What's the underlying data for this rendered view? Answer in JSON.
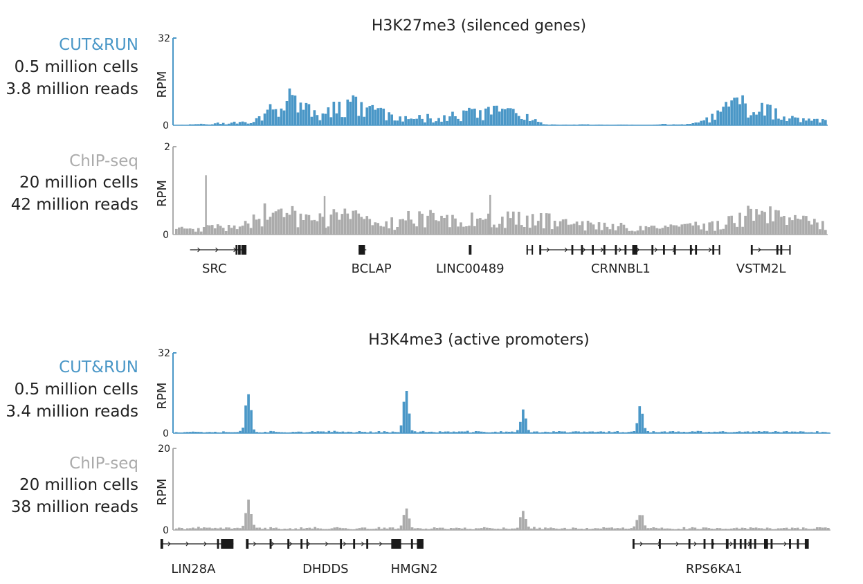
{
  "colors": {
    "cutrun": "#4A97C7",
    "chipseq": "#ABABAB",
    "text": "#222222",
    "gene": "#1a1a1a"
  },
  "chart_data": [
    {
      "type": "area",
      "title": "H3K27me3 (silenced genes)",
      "tracks": [
        {
          "method": "CUT&RUN",
          "cells": "0.5 million cells",
          "reads": "3.8 million reads",
          "ylabel": "RPM",
          "ymax_label": "32",
          "ymin_label": "0",
          "ylim": [
            0,
            32
          ],
          "color_key": "cutrun",
          "x": [
            0,
            4,
            8,
            12,
            14,
            16,
            18,
            19,
            21,
            23,
            25,
            27,
            29,
            31,
            33,
            35,
            37,
            39,
            41,
            43,
            45,
            47,
            49,
            51,
            53,
            55,
            57,
            59,
            61,
            63,
            65,
            67,
            69,
            71,
            73,
            75,
            77,
            79,
            81,
            83,
            85,
            87,
            89,
            91,
            93,
            96,
            100
          ],
          "values": [
            0,
            0.5,
            1,
            1.5,
            6.5,
            7.5,
            12.5,
            8,
            5.5,
            4,
            9,
            9,
            7.5,
            6.5,
            4,
            2.5,
            3,
            3.2,
            3.2,
            4,
            5.5,
            5.5,
            5.5,
            6.5,
            4.5,
            2,
            0.3,
            0.2,
            0.2,
            0.3,
            0.2,
            0.1,
            0.3,
            0.1,
            0.1,
            0.5,
            0.2,
            0.5,
            1.5,
            5,
            7.5,
            8.5,
            9.5,
            8,
            4.5,
            2,
            2
          ],
          "noise": 0.3,
          "seed": 11
        },
        {
          "method": "ChIP-seq",
          "cells": "20 million cells",
          "reads": "42 million reads",
          "ylabel": "RPM",
          "ymax_label": "2",
          "ymin_label": "0",
          "ylim": [
            0,
            2
          ],
          "color_key": "chipseq",
          "x": [
            0,
            4,
            8,
            10,
            12,
            13,
            14,
            16,
            18,
            20,
            22,
            24,
            26,
            28,
            30,
            32,
            34,
            36,
            38,
            40,
            42,
            44,
            46,
            48,
            50,
            52,
            54,
            56,
            58,
            60,
            62,
            64,
            66,
            68,
            70,
            72,
            74,
            76,
            78,
            80,
            82,
            84,
            86,
            88,
            90,
            92,
            94,
            96,
            98,
            100
          ],
          "values": [
            0.15,
            0.18,
            0.2,
            0.22,
            0.42,
            0.5,
            0.58,
            0.55,
            0.5,
            0.45,
            0.42,
            0.45,
            0.5,
            0.45,
            0.3,
            0.25,
            0.35,
            0.45,
            0.48,
            0.4,
            0.45,
            0.55,
            0.45,
            0.4,
            0.42,
            0.42,
            0.4,
            0.42,
            0.38,
            0.32,
            0.3,
            0.25,
            0.22,
            0.22,
            0.2,
            0.2,
            0.18,
            0.2,
            0.22,
            0.25,
            0.25,
            0.25,
            0.5,
            0.58,
            0.6,
            0.55,
            0.5,
            0.4,
            0.3,
            0.25
          ],
          "spikes": [
            {
              "x": 4.6,
              "y": 1.35
            },
            {
              "x": 48.2,
              "y": 0.9
            },
            {
              "x": 22.8,
              "y": 0.88
            }
          ],
          "noise": 0.3,
          "seed": 23
        }
      ],
      "genes": [
        {
          "name": "SRC",
          "label_x": 4.3,
          "start": 0.5,
          "end": 9.3,
          "strand": "+",
          "exons": [
            [
              7.6,
              7.9
            ],
            [
              8.0,
              8.4
            ],
            [
              8.5,
              9.3
            ]
          ]
        },
        {
          "name": "BCLAP",
          "label_x": 28.8,
          "start": 26.8,
          "end": 28.0,
          "strand": "+",
          "exons": [
            [
              26.8,
              27.8
            ]
          ]
        },
        {
          "name": "LINC00489",
          "label_x": 44.2,
          "start": 44.0,
          "end": 44.3,
          "strand": "",
          "exons": [
            [
              44.0,
              44.1
            ],
            [
              44.2,
              44.3
            ]
          ]
        },
        {
          "name": "",
          "label_x": 0,
          "start": 53.0,
          "end": 54.0,
          "strand": "",
          "exons": [
            [
              53.0,
              53.2
            ],
            [
              53.8,
              54.0
            ]
          ]
        },
        {
          "name": "CRNNBL1",
          "label_x": 67.7,
          "start": 55.0,
          "end": 83.0,
          "strand": "+",
          "exons": [
            [
              55,
              55.3
            ],
            [
              60,
              60.3
            ],
            [
              61.5,
              61.8
            ],
            [
              63.2,
              63.5
            ],
            [
              65,
              65.3
            ],
            [
              66.8,
              67.1
            ],
            [
              68.3,
              68.6
            ],
            [
              69.5,
              70.3
            ],
            [
              72.5,
              72.8
            ],
            [
              74.3,
              74.6
            ],
            [
              76,
              76.3
            ],
            [
              78.5,
              78.8
            ],
            [
              79.3,
              79.6
            ],
            [
              82,
              82.3
            ],
            [
              83,
              83.2
            ]
          ]
        },
        {
          "name": "VSTM2L",
          "label_x": 89.6,
          "start": 88.0,
          "end": 94.2,
          "strand": "+",
          "exons": [
            [
              88,
              88.3
            ],
            [
              92,
              92.3
            ],
            [
              92.6,
              92.9
            ],
            [
              94,
              94.2
            ]
          ]
        }
      ]
    },
    {
      "type": "area",
      "title": "H3K4me3 (active promoters)",
      "tracks": [
        {
          "method": "CUT&RUN",
          "cells": "0.5 million cells",
          "reads": "3.4 million reads",
          "ylabel": "RPM",
          "ymax_label": "32",
          "ymin_label": "0",
          "ylim": [
            0,
            32
          ],
          "color_key": "cutrun",
          "baseline": 0.6,
          "peaks": [
            {
              "x": 11.2,
              "h": 15.5
            },
            {
              "x": 35.3,
              "h": 16.2
            },
            {
              "x": 53.2,
              "h": 8.5
            },
            {
              "x": 71.1,
              "h": 9.8
            }
          ],
          "noise": 0.3,
          "seed": 37
        },
        {
          "method": "ChIP-seq",
          "cells": "20 million cells",
          "reads": "38 million reads",
          "ylabel": "RPM",
          "ymax_label": "20",
          "ymin_label": "0",
          "ylim": [
            0,
            20
          ],
          "color_key": "chipseq",
          "baseline": 0.5,
          "peaks": [
            {
              "x": 11.2,
              "h": 6.8
            },
            {
              "x": 35.3,
              "h": 5.4
            },
            {
              "x": 53.2,
              "h": 4.3
            },
            {
              "x": 71.1,
              "h": 4.2
            }
          ],
          "noise": 0.3,
          "seed": 41
        }
      ],
      "genes": [
        {
          "name": "LIN28A",
          "label_x": 5.2,
          "start": 0.2,
          "end": 11.3,
          "strand": "+",
          "exons": [
            [
              0.2,
              0.6
            ],
            [
              8.8,
              9.1
            ],
            [
              9.4,
              11.3
            ]
          ]
        },
        {
          "name": "DHDDS",
          "label_x": 25.3,
          "start": 13.2,
          "end": 35.8,
          "strand": "+",
          "exons": [
            [
              13.2,
              13.6
            ],
            [
              16.8,
              17.1
            ],
            [
              19.5,
              19.8
            ],
            [
              21.5,
              21.8
            ],
            [
              22.4,
              22.6
            ],
            [
              27.5,
              27.8
            ],
            [
              29.5,
              29.8
            ],
            [
              31.5,
              31.8
            ]
          ]
        },
        {
          "name": "HMGN2",
          "label_x": 38.8,
          "start": 35.3,
          "end": 40.2,
          "strand": "+",
          "exons": [
            [
              35.3,
              36.8
            ],
            [
              38.3,
              38.6
            ],
            [
              39.2,
              40.2
            ]
          ]
        },
        {
          "name": "RPS6KA1",
          "label_x": 84.4,
          "start": 72.0,
          "end": 98.8,
          "strand": "+",
          "exons": [
            [
              72,
              72.3
            ],
            [
              76,
              76.3
            ],
            [
              80.5,
              80.8
            ],
            [
              82.8,
              83.1
            ],
            [
              84,
              84.3
            ],
            [
              86.2,
              86.6
            ],
            [
              87.4,
              87.7
            ],
            [
              88.3,
              88.6
            ],
            [
              89,
              89.3
            ],
            [
              89.8,
              90.1
            ],
            [
              90.5,
              90.8
            ],
            [
              92,
              92.6
            ],
            [
              93,
              93.3
            ],
            [
              95.8,
              96.1
            ],
            [
              97,
              97.3
            ],
            [
              98.2,
              98.8
            ]
          ]
        }
      ]
    }
  ]
}
